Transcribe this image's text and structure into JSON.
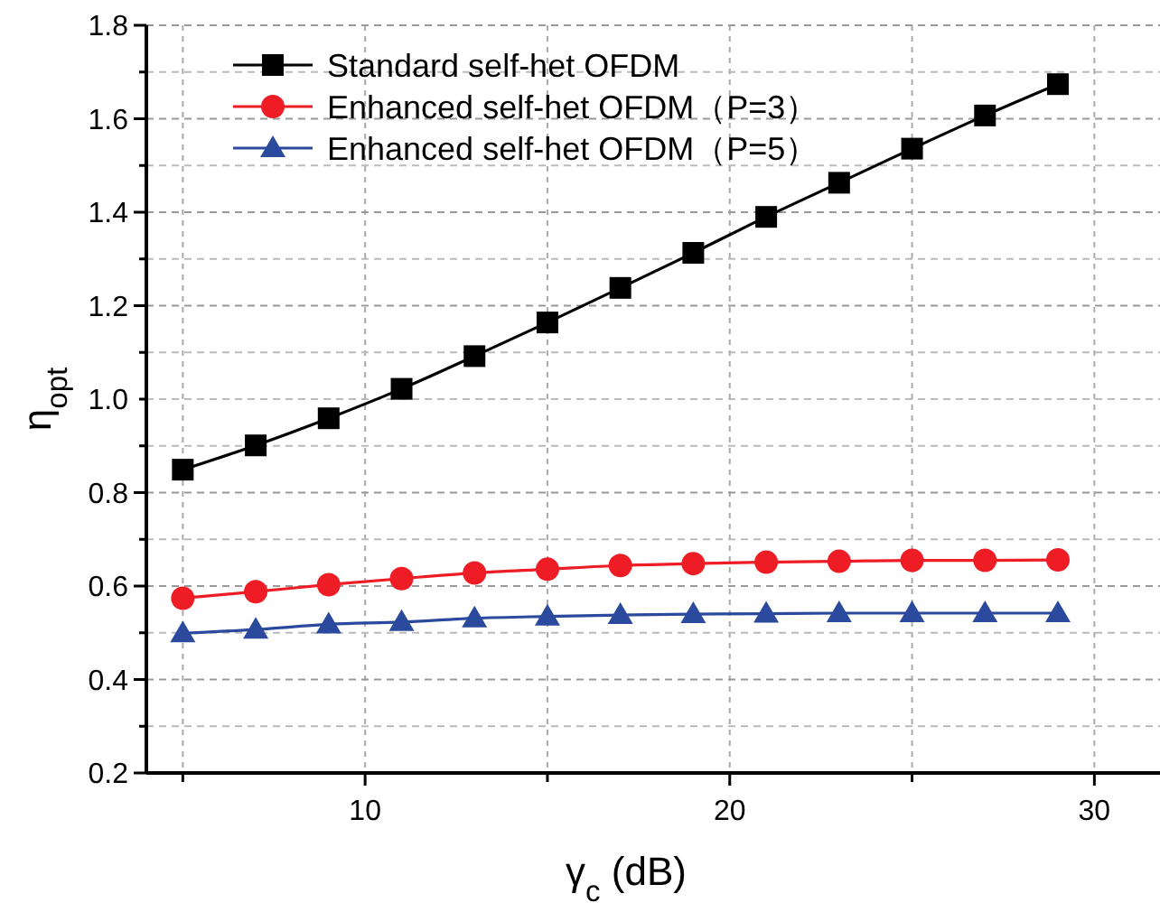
{
  "chart_data": {
    "type": "line",
    "xlabel": "γ$_{c}$ (dB)",
    "ylabel": "η$_{opt}$",
    "x": [
      5,
      7,
      9,
      11,
      13,
      15,
      17,
      19,
      21,
      23,
      25,
      27,
      29
    ],
    "series": [
      {
        "name": "Standard self-het OFDM",
        "color": "#000000",
        "marker": "square",
        "values": [
          0.849,
          0.901,
          0.959,
          1.022,
          1.092,
          1.164,
          1.238,
          1.313,
          1.39,
          1.463,
          1.536,
          1.607,
          1.674
        ]
      },
      {
        "name": "Enhanced self-het OFDM（P=3）",
        "color": "#ee1c25",
        "marker": "circle",
        "values": [
          0.574,
          0.588,
          0.603,
          0.616,
          0.628,
          0.636,
          0.644,
          0.648,
          0.651,
          0.653,
          0.655,
          0.655,
          0.656
        ]
      },
      {
        "name": "Enhanced self-het OFDM（P=5）",
        "color": "#2b4a9e",
        "marker": "triangle",
        "values": [
          0.499,
          0.507,
          0.518,
          0.523,
          0.531,
          0.535,
          0.538,
          0.54,
          0.541,
          0.542,
          0.542,
          0.542,
          0.542
        ]
      }
    ],
    "xlim": [
      4,
      31.8
    ],
    "xticks": [
      {
        "value": 5,
        "label": null
      },
      10,
      {
        "value": 15,
        "label": null
      },
      20,
      {
        "value": 25,
        "label": null
      },
      30
    ],
    "ylim": [
      0.2,
      1.8
    ],
    "yticks": [
      0.2,
      {
        "value": 0.3,
        "label": null
      },
      0.4,
      {
        "value": 0.5,
        "label": null
      },
      0.6,
      {
        "value": 0.7,
        "label": null
      },
      0.8,
      {
        "value": 0.9,
        "label": null
      },
      {
        "value": 1,
        "label": "1.0"
      },
      {
        "value": 1.1,
        "label": null
      },
      1.2,
      {
        "value": 1.3,
        "label": null
      },
      1.4,
      {
        "value": 1.5,
        "label": null
      },
      1.6,
      {
        "value": 1.7,
        "label": null
      },
      1.8
    ],
    "grid": true,
    "legend": "top left",
    "line_style": "solid"
  }
}
